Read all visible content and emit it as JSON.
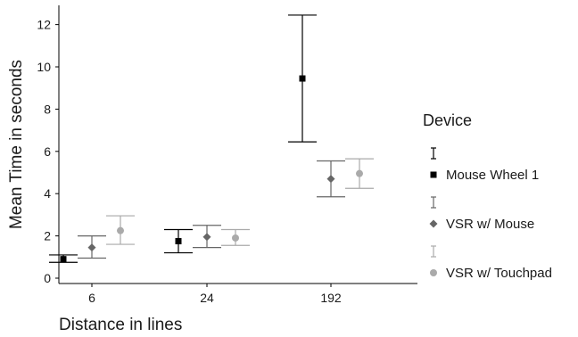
{
  "chart_data": {
    "type": "scatter",
    "title": "",
    "xlabel": "Distance in lines",
    "ylabel": "Mean Time in seconds",
    "categories": [
      "6",
      "24",
      "192"
    ],
    "y_ticks": [
      0,
      2,
      4,
      6,
      8,
      10,
      12
    ],
    "ylim": [
      0,
      13
    ],
    "grid": false,
    "legend_title": "Device",
    "legend_placement": "right",
    "series": [
      {
        "name": "Mouse Wheel 1",
        "color": "#000000",
        "marker": "square",
        "values": [
          0.9,
          1.75,
          9.45
        ],
        "lower": [
          0.75,
          1.2,
          6.45
        ],
        "upper": [
          1.1,
          2.3,
          12.45
        ]
      },
      {
        "name": "VSR w/ Mouse",
        "color": "#666666",
        "marker": "diamond",
        "values": [
          1.45,
          1.95,
          4.7
        ],
        "lower": [
          0.95,
          1.45,
          3.85
        ],
        "upper": [
          2.0,
          2.5,
          5.55
        ]
      },
      {
        "name": "VSR w/ Touchpad",
        "color": "#aaaaaa",
        "marker": "circle",
        "values": [
          2.25,
          1.9,
          4.95
        ],
        "lower": [
          1.6,
          1.55,
          4.25
        ],
        "upper": [
          2.95,
          2.3,
          5.65
        ]
      }
    ]
  }
}
